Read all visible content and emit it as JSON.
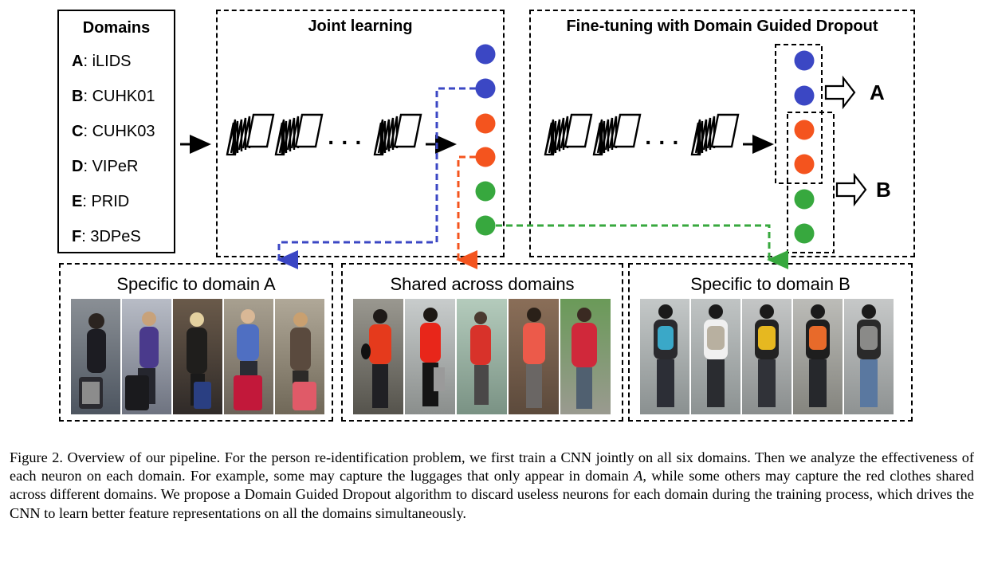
{
  "domains_panel": {
    "title": "Domains",
    "items": [
      {
        "key": "A",
        "name": "iLIDS"
      },
      {
        "key": "B",
        "name": "CUHK01"
      },
      {
        "key": "C",
        "name": "CUHK03"
      },
      {
        "key": "D",
        "name": "VIPeR"
      },
      {
        "key": "E",
        "name": "PRID"
      },
      {
        "key": "F",
        "name": "3DPeS"
      }
    ]
  },
  "joint_panel": {
    "title": "Joint learning",
    "dots": "· · ·"
  },
  "finetune_panel": {
    "title": "Fine-tuning with Domain Guided Dropout",
    "dots": "· · ·",
    "out_a": "A",
    "out_b": "B"
  },
  "bottom_panels": [
    {
      "title": "Specific to domain A"
    },
    {
      "title": "Shared across domains"
    },
    {
      "title": "Specific to domain B"
    }
  ],
  "colors": {
    "blue": "#3b47c4",
    "orange": "#f4541e",
    "green": "#37a83e"
  },
  "caption": {
    "p1": "Figure 2. Overview of our pipeline. For the person re-identification problem, we first train a CNN jointly on all six domains. Then we analyze the effectiveness of each neuron on each domain. For example, some may capture the luggages that only appear in domain ",
    "var": "A",
    "p2": ", while some others may capture the red clothes shared across different domains. We propose a Domain Guided Dropout algorithm to discard useless neurons for each domain during the training process, which drives the CNN to learn better feature representations on all the domains simultaneously."
  }
}
